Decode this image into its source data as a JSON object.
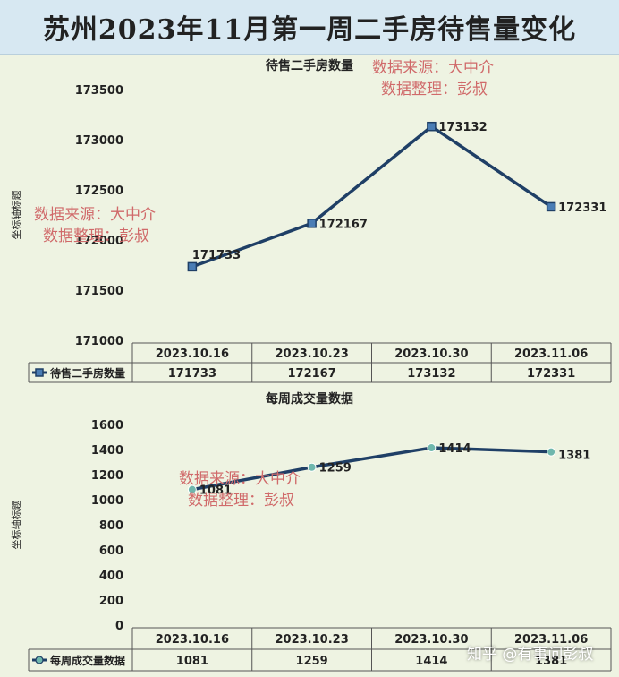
{
  "page_title": "苏州2023年11月第一周二手房待售量变化",
  "watermark": {
    "line1": "数据来源：大中介",
    "line2": "数据整理：彭叔"
  },
  "zhihu_watermark": "知乎 @有事问彭叔",
  "colors": {
    "background": "#eef3e2",
    "title_bar": "#d7e8f2",
    "line": "#1f3f66",
    "marker_square": "#4a7db5",
    "marker_circle": "#6fb7ad",
    "watermark": "#d06a6a"
  },
  "chart_data": [
    {
      "type": "line",
      "title": "待售二手房数量",
      "ylabel": "坐标轴标题",
      "categories": [
        "2023.10.16",
        "2023.10.23",
        "2023.10.30",
        "2023.11.06"
      ],
      "series": [
        {
          "name": "待售二手房数量",
          "values": [
            171733,
            172167,
            173132,
            172331
          ],
          "marker": "square"
        }
      ],
      "ylim": [
        171000,
        173500
      ],
      "yticks": [
        "171000",
        "171500",
        "172000",
        "172500",
        "173000",
        "173500"
      ],
      "data_table": true,
      "grid": false
    },
    {
      "type": "line",
      "title": "每周成交量数据",
      "ylabel": "坐标轴标题",
      "categories": [
        "2023.10.16",
        "2023.10.23",
        "2023.10.30",
        "2023.11.06"
      ],
      "series": [
        {
          "name": "每周成交量数据",
          "values": [
            1081,
            1259,
            1414,
            1381
          ],
          "marker": "circle"
        }
      ],
      "ylim": [
        0,
        1600
      ],
      "yticks": [
        "0",
        "200",
        "400",
        "600",
        "800",
        "1000",
        "1200",
        "1400",
        "1600"
      ],
      "data_table": true,
      "grid": false
    }
  ]
}
